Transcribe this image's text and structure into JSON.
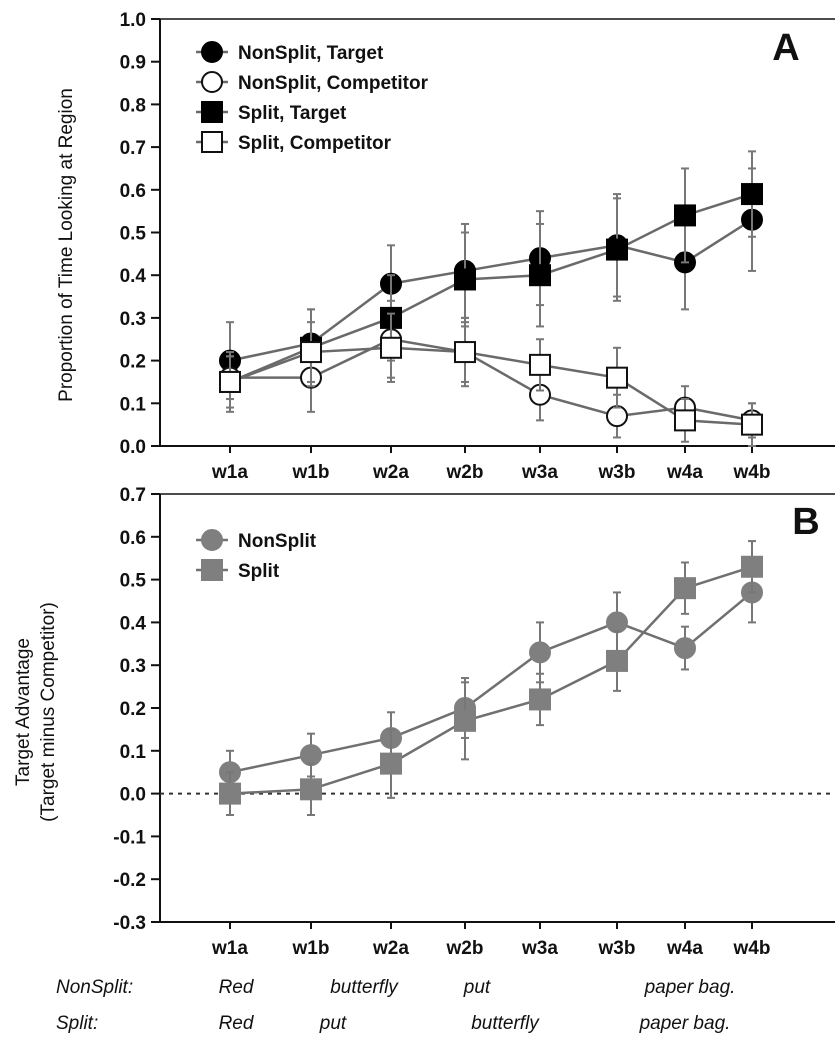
{
  "chart_data": [
    {
      "type": "line",
      "panel_label": "A",
      "ylabel": "Proportion of Time Looking at Region",
      "ylim": [
        0.0,
        1.0
      ],
      "yticks": [
        "0.0",
        "0.1",
        "0.2",
        "0.3",
        "0.4",
        "0.5",
        "0.6",
        "0.7",
        "0.8",
        "0.9",
        "1.0"
      ],
      "categories": [
        "w1a",
        "w1b",
        "w2a",
        "w2b",
        "w3a",
        "w3b",
        "w4a",
        "w4b"
      ],
      "legend_position": "top-left",
      "series": [
        {
          "name": "NonSplit, Target",
          "marker": "circle",
          "fill": "#000000",
          "values": [
            0.2,
            0.24,
            0.38,
            0.41,
            0.44,
            0.47,
            0.43,
            0.53
          ],
          "err": [
            0.09,
            0.08,
            0.09,
            0.11,
            0.11,
            0.12,
            0.11,
            0.12
          ]
        },
        {
          "name": "NonSplit, Competitor",
          "marker": "circle",
          "fill": "#ffffff",
          "values": [
            0.16,
            0.16,
            0.25,
            0.22,
            0.12,
            0.07,
            0.09,
            0.06
          ],
          "err": [
            0.05,
            0.08,
            0.09,
            0.07,
            0.06,
            0.05,
            0.05,
            0.04
          ]
        },
        {
          "name": "Split, Target",
          "marker": "square",
          "fill": "#000000",
          "values": [
            0.15,
            0.23,
            0.3,
            0.39,
            0.4,
            0.46,
            0.54,
            0.59
          ],
          "err": [
            0.07,
            0.09,
            0.1,
            0.11,
            0.12,
            0.12,
            0.11,
            0.1
          ]
        },
        {
          "name": "Split, Competitor",
          "marker": "square",
          "fill": "#ffffff",
          "values": [
            0.15,
            0.22,
            0.23,
            0.22,
            0.19,
            0.16,
            0.06,
            0.05
          ],
          "err": [
            0.06,
            0.07,
            0.08,
            0.08,
            0.06,
            0.07,
            0.05,
            0.05
          ]
        }
      ]
    },
    {
      "type": "line",
      "panel_label": "B",
      "ylabel_line1": "Target Advantage",
      "ylabel_line2": "(Target minus Competitor)",
      "ylim": [
        -0.3,
        0.7
      ],
      "yticks": [
        "-0.3",
        "-0.2",
        "-0.1",
        "0.0",
        "0.1",
        "0.2",
        "0.3",
        "0.4",
        "0.5",
        "0.6",
        "0.7"
      ],
      "reference_line": 0.0,
      "categories": [
        "w1a",
        "w1b",
        "w2a",
        "w2b",
        "w3a",
        "w3b",
        "w4a",
        "w4b"
      ],
      "legend_position": "top-left",
      "series": [
        {
          "name": "NonSplit",
          "marker": "circle",
          "fill": "#7f7f7f",
          "values": [
            0.05,
            0.09,
            0.13,
            0.2,
            0.33,
            0.4,
            0.34,
            0.47
          ],
          "err": [
            0.05,
            0.05,
            0.06,
            0.07,
            0.07,
            0.07,
            0.05,
            0.07
          ]
        },
        {
          "name": "Split",
          "marker": "square",
          "fill": "#7f7f7f",
          "values": [
            0.0,
            0.01,
            0.07,
            0.17,
            0.22,
            0.31,
            0.48,
            0.53
          ],
          "err": [
            0.05,
            0.06,
            0.08,
            0.09,
            0.06,
            0.07,
            0.06,
            0.06
          ]
        }
      ]
    }
  ],
  "word_rows": [
    {
      "label": "NonSplit:",
      "words": [
        {
          "text": "Red",
          "at": "w1a"
        },
        {
          "text": "butterfly",
          "at": "w1b"
        },
        {
          "text": "put",
          "at": "w2b"
        },
        {
          "text": "paper bag.",
          "at": "w4a"
        }
      ]
    },
    {
      "label": "Split:",
      "words": [
        {
          "text": "Red",
          "at": "w1a"
        },
        {
          "text": "put",
          "at": "w1b"
        },
        {
          "text": "butterfly",
          "at": "w2b"
        },
        {
          "text": "paper bag.",
          "at": "w4a"
        }
      ]
    }
  ]
}
